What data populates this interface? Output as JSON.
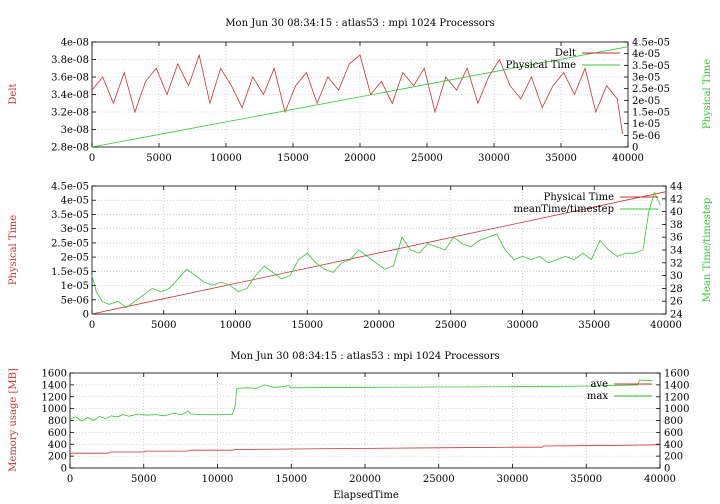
{
  "chart_data": [
    {
      "type": "line",
      "title": "Mon Jun 30 08:34:15 : atlas53 : mpi 1024 Processors",
      "xlabel": "",
      "ylabel": "Delt",
      "y2label": "Physical Time",
      "xlim": [
        0,
        40000
      ],
      "ylim": [
        2.8e-08,
        4e-08
      ],
      "y2lim": [
        0,
        4.5e-05
      ],
      "xticks": [
        "0",
        "5000",
        "10000",
        "15000",
        "20000",
        "25000",
        "30000",
        "35000",
        "40000"
      ],
      "yticks": [
        "2.8e-08",
        "3e-08",
        "3.2e-08",
        "3.4e-08",
        "3.6e-08",
        "3.8e-08",
        "4e-08"
      ],
      "y2ticks": [
        "0",
        "5e-06",
        "1e-05",
        "1.5e-05",
        "2e-05",
        "2.5e-05",
        "3e-05",
        "3.5e-05",
        "4e-05",
        "4.5e-05"
      ],
      "grid": true,
      "legend": "top-right",
      "series": [
        {
          "name": "Delt",
          "color": "#c83232",
          "axis": "y1",
          "x": [
            0,
            800,
            1600,
            2400,
            3200,
            4000,
            4800,
            5600,
            6400,
            7200,
            8000,
            8800,
            9600,
            10400,
            11200,
            12000,
            12800,
            13600,
            14400,
            15200,
            16000,
            16800,
            17600,
            18400,
            19200,
            20000,
            20800,
            21600,
            22400,
            23200,
            24000,
            24800,
            25600,
            26400,
            27200,
            28000,
            28800,
            29600,
            30400,
            31200,
            32000,
            32800,
            33600,
            34400,
            35200,
            36000,
            36800,
            37600,
            38400,
            39200,
            39600
          ],
          "y": [
            3.45e-08,
            3.6e-08,
            3.3e-08,
            3.65e-08,
            3.2e-08,
            3.55e-08,
            3.7e-08,
            3.4e-08,
            3.75e-08,
            3.5e-08,
            3.85e-08,
            3.3e-08,
            3.7e-08,
            3.5e-08,
            3.25e-08,
            3.6e-08,
            3.4e-08,
            3.7e-08,
            3.2e-08,
            3.5e-08,
            3.65e-08,
            3.3e-08,
            3.6e-08,
            3.45e-08,
            3.75e-08,
            3.85e-08,
            3.4e-08,
            3.55e-08,
            3.3e-08,
            3.65e-08,
            3.5e-08,
            3.7e-08,
            3.2e-08,
            3.6e-08,
            3.45e-08,
            3.7e-08,
            3.3e-08,
            3.6e-08,
            3.8e-08,
            3.5e-08,
            3.35e-08,
            3.6e-08,
            3.25e-08,
            3.5e-08,
            3.65e-08,
            3.4e-08,
            3.7e-08,
            3.2e-08,
            3.5e-08,
            3.35e-08,
            2.95e-08
          ]
        },
        {
          "name": "Physical Time",
          "color": "#32c832",
          "axis": "y2",
          "x": [
            0,
            40000
          ],
          "y": [
            0,
            4.3e-05
          ]
        }
      ]
    },
    {
      "type": "line",
      "title": "",
      "xlabel": "",
      "ylabel": "Physical Time",
      "y2label": "Mean Time/timestep",
      "xlim": [
        0,
        40000
      ],
      "ylim": [
        0,
        4.5e-05
      ],
      "y2lim": [
        24,
        44
      ],
      "xticks": [
        "0",
        "5000",
        "10000",
        "15000",
        "20000",
        "25000",
        "30000",
        "35000",
        "40000"
      ],
      "yticks": [
        "0",
        "5e-06",
        "1e-05",
        "1.5e-05",
        "2e-05",
        "2.5e-05",
        "3e-05",
        "3.5e-05",
        "4e-05",
        "4.5e-05"
      ],
      "y2ticks": [
        "24",
        "26",
        "28",
        "30",
        "32",
        "34",
        "36",
        "38",
        "40",
        "42",
        "44"
      ],
      "grid": true,
      "legend": "top-right",
      "series": [
        {
          "name": "Physical Time",
          "color": "#c83232",
          "axis": "y1",
          "x": [
            0,
            40000
          ],
          "y": [
            0,
            4.3e-05
          ]
        },
        {
          "name": "meanTime/timestep",
          "color": "#32c832",
          "axis": "y2",
          "x": [
            0,
            300,
            700,
            1200,
            1800,
            2400,
            3000,
            3600,
            4200,
            4800,
            5400,
            6000,
            6600,
            7200,
            7800,
            8400,
            9000,
            9600,
            10200,
            10800,
            11400,
            12000,
            12600,
            13200,
            13800,
            14400,
            15000,
            15600,
            16200,
            16800,
            17400,
            18000,
            18600,
            19200,
            19800,
            20400,
            21000,
            21600,
            22200,
            22800,
            23400,
            24000,
            24600,
            25200,
            25800,
            26400,
            27000,
            27600,
            28200,
            28800,
            29400,
            30000,
            30600,
            31200,
            31800,
            32400,
            33000,
            33600,
            34200,
            34800,
            35400,
            36000,
            36600,
            37200,
            37800,
            38400,
            38800,
            39200,
            39600
          ],
          "y": [
            30,
            27.5,
            26,
            25.5,
            26,
            25,
            26,
            27,
            28,
            27.5,
            28,
            29.5,
            31,
            30,
            29,
            28.5,
            29,
            28.5,
            27.5,
            28,
            30,
            31.5,
            30.5,
            29.5,
            30,
            32.5,
            33.5,
            32,
            31,
            30.5,
            32,
            32.5,
            34,
            33,
            32,
            31,
            31.5,
            36,
            34,
            33.5,
            35,
            34.5,
            34,
            36,
            35,
            34.5,
            35.5,
            36,
            36.5,
            34,
            32.5,
            33,
            32.5,
            33,
            32,
            32.5,
            33,
            32.5,
            33.5,
            32.5,
            35.5,
            34,
            33,
            33.5,
            33.5,
            34,
            40,
            43,
            41
          ]
        }
      ]
    },
    {
      "type": "line",
      "title": "Mon Jun 30 08:34:15 : atlas53 : mpi 1024 Processors",
      "xlabel": "ElapsedTime",
      "ylabel": "Memory usage [MB]",
      "y2label": "",
      "xlim": [
        0,
        40000
      ],
      "ylim": [
        0,
        1600
      ],
      "y2lim": [
        0,
        1600
      ],
      "xticks": [
        "0",
        "5000",
        "10000",
        "15000",
        "20000",
        "25000",
        "30000",
        "35000",
        "40000"
      ],
      "yticks": [
        "0",
        "200",
        "400",
        "600",
        "800",
        "1000",
        "1200",
        "1400",
        "1600"
      ],
      "y2ticks": [
        "0",
        "200",
        "400",
        "600",
        "800",
        "1000",
        "1200",
        "1400",
        "1600"
      ],
      "grid": true,
      "legend": "top-right",
      "series": [
        {
          "name": "ave",
          "color": "#c83232",
          "axis": "y1",
          "x": [
            0,
            2600,
            2700,
            5000,
            5100,
            8000,
            8100,
            11000,
            11200,
            15000,
            20000,
            25000,
            30000,
            32000,
            32100,
            35000,
            40000
          ],
          "y": [
            250,
            250,
            270,
            270,
            285,
            285,
            300,
            300,
            310,
            320,
            330,
            340,
            350,
            350,
            370,
            375,
            390
          ]
        },
        {
          "name": "max",
          "color": "#32c832",
          "axis": "y1",
          "x": [
            0,
            400,
            800,
            1200,
            1600,
            2000,
            2400,
            2800,
            3200,
            3600,
            4000,
            4600,
            5200,
            5800,
            6400,
            7000,
            7600,
            8000,
            8200,
            9000,
            10000,
            11000,
            11200,
            11300,
            12000,
            12600,
            13200,
            13800,
            14400,
            14800,
            15000,
            20000,
            25000,
            30000,
            35000,
            38500,
            38600,
            39500
          ],
          "y": [
            820,
            860,
            790,
            850,
            800,
            870,
            830,
            880,
            860,
            900,
            870,
            910,
            890,
            900,
            880,
            920,
            900,
            960,
            910,
            900,
            900,
            900,
            1050,
            1340,
            1350,
            1340,
            1400,
            1360,
            1370,
            1390,
            1350,
            1360,
            1365,
            1370,
            1380,
            1400,
            1480,
            1470
          ]
        }
      ]
    }
  ]
}
